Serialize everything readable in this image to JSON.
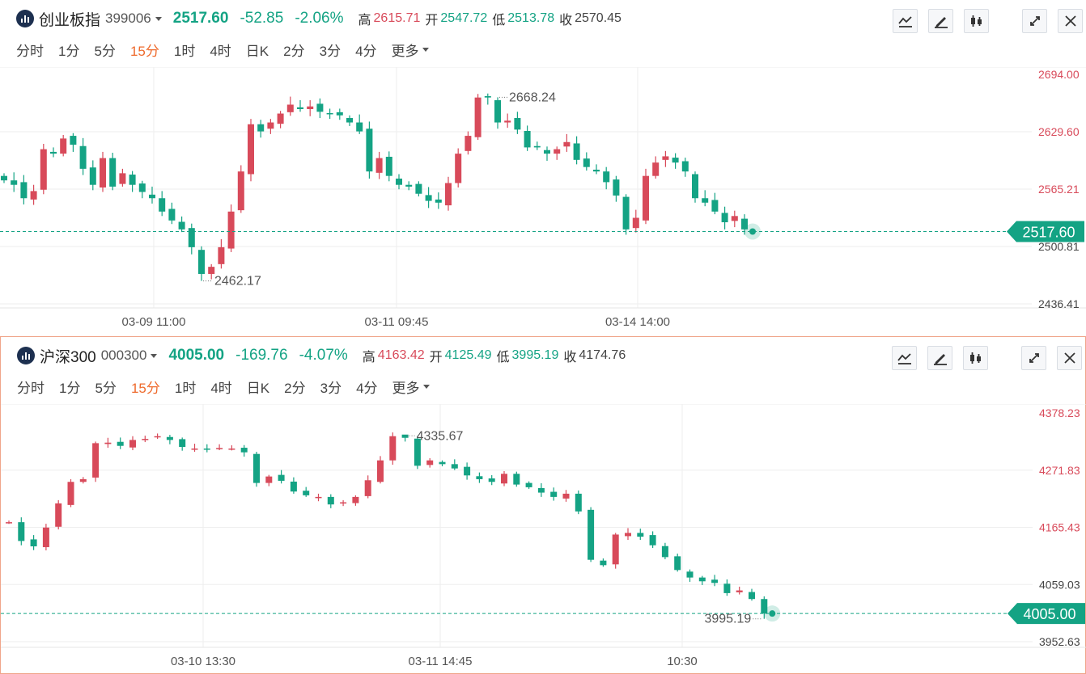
{
  "periods": [
    "分时",
    "1分",
    "5分",
    "15分",
    "1时",
    "4时",
    "日K",
    "2分",
    "3分",
    "4分",
    "更多"
  ],
  "active_period": "15分",
  "labels": {
    "high": "高",
    "open": "开",
    "low": "低",
    "close": "收"
  },
  "colors": {
    "up": "#d84a5a",
    "down": "#14a384",
    "accent": "#ee6a2c",
    "axis_red": "#d84a5a",
    "axis_gray": "#444444"
  },
  "toolbar_icons": [
    "indicator-icon",
    "draw-icon",
    "candle-type-icon",
    "expand-icon",
    "close-icon"
  ],
  "panels": [
    {
      "name": "创业板指",
      "code": "399006",
      "price": "2517.60",
      "change": "-52.85",
      "change_pct": "-2.06%",
      "high": "2615.71",
      "open": "2547.72",
      "low": "2513.78",
      "close": "2570.45",
      "chart_data": {
        "type": "candlestick",
        "y_ticks": [
          "2694.00",
          "2629.60",
          "2565.21",
          "2500.81",
          "2436.41"
        ],
        "x_ticks": [
          "03-09 11:00",
          "03-11 09:45",
          "03-14 14:00"
        ],
        "last_price": 2517.6,
        "high_label": "2668.24",
        "low_label": "2462.17",
        "close_points": [
          2575,
          2570,
          2555,
          2563,
          2610,
          2605,
          2622,
          2615,
          2588,
          2570,
          2600,
          2568,
          2583,
          2570,
          2562,
          2555,
          2540,
          2530,
          2520,
          2500,
          2470,
          2478,
          2500,
          2540,
          2585,
          2638,
          2630,
          2640,
          2650,
          2660,
          2655,
          2658,
          2652,
          2650,
          2648,
          2640,
          2630,
          2585,
          2600,
          2580,
          2570,
          2568,
          2560,
          2552,
          2550,
          2572,
          2605,
          2625,
          2668,
          2668,
          2640,
          2642,
          2632,
          2612,
          2612,
          2605,
          2610,
          2618,
          2598,
          2590,
          2585,
          2573,
          2558,
          2520,
          2533,
          2580,
          2595,
          2602,
          2595,
          2585,
          2555,
          2550,
          2540,
          2528,
          2535,
          2520
        ]
      }
    },
    {
      "name": "沪深300",
      "code": "000300",
      "price": "4005.00",
      "change": "-169.76",
      "change_pct": "-4.07%",
      "high": "4163.42",
      "open": "4125.49",
      "low": "3995.19",
      "close": "4174.76",
      "chart_data": {
        "type": "candlestick",
        "y_ticks": [
          "4378.23",
          "4271.83",
          "4165.43",
          "4059.03",
          "3952.63"
        ],
        "x_ticks": [
          "03-10 13:30",
          "03-11 14:45",
          "10:30"
        ],
        "last_price": 4005.0,
        "high_label": "4335.67",
        "low_label": "3995.19",
        "close_points": [
          4175,
          4140,
          4130,
          4165,
          4210,
          4250,
          4255,
          4322,
          4323,
          4317,
          4328,
          4330,
          4335,
          4328,
          4315,
          4312,
          4310,
          4313,
          4312,
          4305,
          4248,
          4260,
          4252,
          4232,
          4225,
          4222,
          4208,
          4212,
          4222,
          4253,
          4290,
          4335,
          4332,
          4280,
          4290,
          4283,
          4275,
          4262,
          4255,
          4250,
          4265,
          4245,
          4240,
          4230,
          4222,
          4228,
          4195,
          4105,
          4095,
          4152,
          4155,
          4148,
          4132,
          4110,
          4086,
          4072,
          4065,
          4062,
          4043,
          4048,
          4032,
          4005
        ]
      }
    }
  ]
}
